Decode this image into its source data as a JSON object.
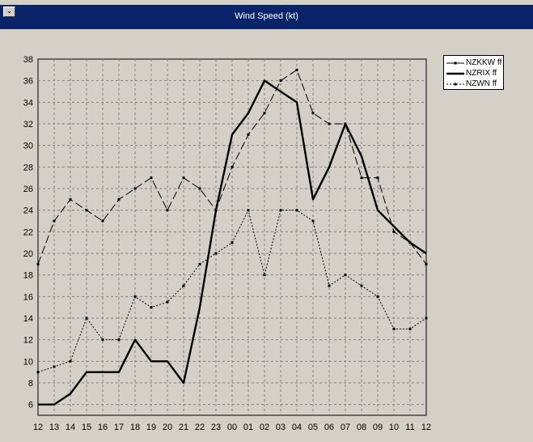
{
  "window": {
    "title": "Wind Speed  (kt)",
    "menu_glyph": "⌄"
  },
  "chart_data": {
    "type": "line",
    "title": "Wind Speed  (kt)",
    "xlabel": "",
    "ylabel": "",
    "categories": [
      "12",
      "13",
      "14",
      "15",
      "16",
      "17",
      "18",
      "19",
      "20",
      "21",
      "22",
      "23",
      "00",
      "01",
      "02",
      "03",
      "04",
      "05",
      "06",
      "07",
      "08",
      "09",
      "10",
      "11",
      "12"
    ],
    "ylim": [
      5,
      38
    ],
    "yticks": [
      6,
      8,
      10,
      12,
      14,
      16,
      18,
      20,
      22,
      24,
      26,
      28,
      30,
      32,
      34,
      36,
      38
    ],
    "grid": true,
    "legend_position": "top-right",
    "series": [
      {
        "name": "NZKKW ff",
        "style": "dash-long",
        "values": [
          19,
          23,
          25,
          24,
          23,
          25,
          26,
          27,
          24,
          27,
          26,
          24,
          28,
          31,
          33,
          36,
          37,
          33,
          32,
          32,
          27,
          27,
          22,
          21,
          19
        ]
      },
      {
        "name": "NZRIX ff",
        "style": "solid-bold",
        "values": [
          6,
          6,
          7,
          9,
          9,
          9,
          12,
          10,
          10,
          8,
          15,
          24,
          31,
          33,
          36,
          35,
          34,
          25,
          28,
          32,
          29,
          24,
          22.5,
          21,
          20
        ]
      },
      {
        "name": "NZWN ff",
        "style": "dotted",
        "values": [
          9,
          9.5,
          10,
          14,
          12,
          12,
          16,
          15,
          15.5,
          17,
          19,
          20,
          21,
          24,
          18,
          24,
          24,
          23,
          17,
          18,
          17,
          16,
          13,
          13,
          14
        ]
      }
    ],
    "colors": {
      "background": "#d4d0c8",
      "grid": "#808080",
      "line": "#000000",
      "titlebar": "#0a246a"
    }
  }
}
